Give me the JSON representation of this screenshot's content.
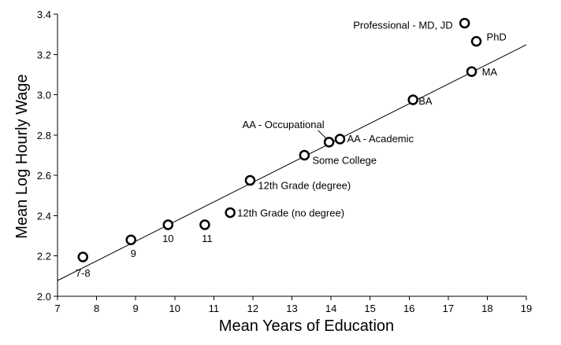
{
  "chart_data": {
    "type": "scatter",
    "title": "",
    "xlabel": "Mean Years of Education",
    "ylabel": "Mean Log Hourly Wage",
    "xlim": [
      7,
      19
    ],
    "ylim": [
      2.0,
      3.4
    ],
    "x_ticks": [
      "7",
      "8",
      "9",
      "10",
      "11",
      "12",
      "13",
      "14",
      "15",
      "16",
      "17",
      "18",
      "19"
    ],
    "y_ticks": [
      "2.0",
      "2.2",
      "2.4",
      "2.6",
      "2.8",
      "3.0",
      "3.2",
      "3.4"
    ],
    "grid": false,
    "legend": "none",
    "points": [
      {
        "label": "7-8",
        "x": 7.65,
        "y": 2.195
      },
      {
        "label": "9",
        "x": 8.88,
        "y": 2.28
      },
      {
        "label": "10",
        "x": 9.83,
        "y": 2.355
      },
      {
        "label": "11",
        "x": 10.77,
        "y": 2.355
      },
      {
        "label": "12th Grade (no degree)",
        "x": 11.42,
        "y": 2.415
      },
      {
        "label": "12th Grade (degree)",
        "x": 11.93,
        "y": 2.575
      },
      {
        "label": "Some College",
        "x": 13.32,
        "y": 2.7
      },
      {
        "label": "AA - Occupational",
        "x": 13.95,
        "y": 2.765
      },
      {
        "label": "AA - Academic",
        "x": 14.23,
        "y": 2.78
      },
      {
        "label": "BA",
        "x": 16.1,
        "y": 2.975
      },
      {
        "label": "MA",
        "x": 17.6,
        "y": 3.115
      },
      {
        "label": "PhD",
        "x": 17.72,
        "y": 3.265
      },
      {
        "label": "Professional - MD, JD",
        "x": 17.42,
        "y": 3.355
      }
    ],
    "fit_line": {
      "x": [
        7,
        19
      ],
      "y": [
        2.078,
        3.248
      ]
    }
  }
}
